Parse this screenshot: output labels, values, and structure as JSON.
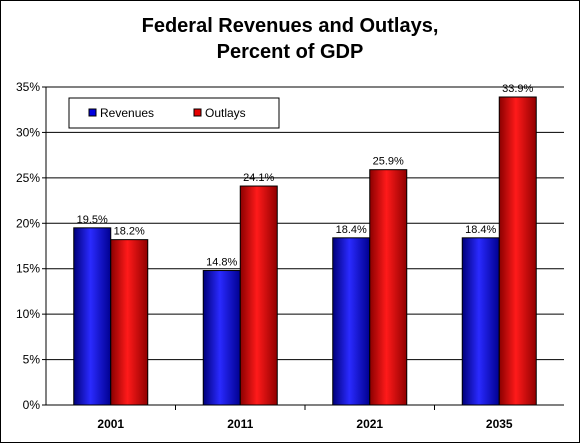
{
  "chart_data": {
    "type": "bar",
    "title_line1": "Federal Revenues and Outlays,",
    "title_line2": "Percent of GDP",
    "categories": [
      "2001",
      "2011",
      "2021",
      "2035"
    ],
    "series": [
      {
        "name": "Revenues",
        "values": [
          19.5,
          14.8,
          18.4,
          18.4
        ],
        "labels": [
          "19.5%",
          "14.8%",
          "18.4%",
          "18.4%"
        ],
        "color": "#1a1aff"
      },
      {
        "name": "Outlays",
        "values": [
          18.2,
          24.1,
          25.9,
          33.9
        ],
        "labels": [
          "18.2%",
          "24.1%",
          "25.9%",
          "33.9%"
        ],
        "color": "#e60000"
      }
    ],
    "y_ticks": [
      "0%",
      "5%",
      "10%",
      "15%",
      "20%",
      "25%",
      "30%",
      "35%"
    ],
    "ylim": [
      0,
      35
    ],
    "legend_position": "top-left",
    "grid": true
  }
}
